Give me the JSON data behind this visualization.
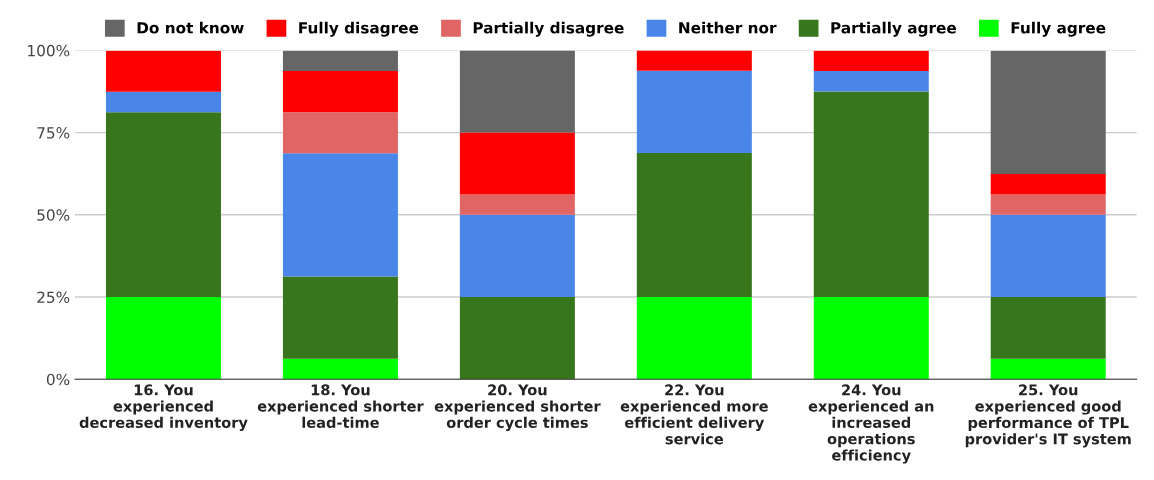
{
  "chart_data": {
    "type": "bar",
    "stacked": true,
    "categories": [
      "16. You\nexperienced\ndecreased inventory",
      "18. You\nexperienced shorter\nlead-time",
      "20. You\nexperienced shorter\norder cycle times",
      "22. You\nexperienced more\nefficient delivery\nservice",
      "24. You\nexperienced an\nincreased\noperations\nefficiency",
      "25. You\nexperienced good\nperformance of TPL\nprovider's IT system"
    ],
    "series": [
      {
        "name": "Fully agree",
        "color": "#00ff00",
        "values": [
          25,
          6.2,
          0,
          25,
          25,
          6.2
        ]
      },
      {
        "name": "Partially agree",
        "color": "#38761d",
        "values": [
          56.2,
          25,
          25,
          43.8,
          62.5,
          18.8
        ]
      },
      {
        "name": "Neither nor",
        "color": "#4a86e8",
        "values": [
          6.2,
          37.5,
          25,
          25,
          6.2,
          25
        ]
      },
      {
        "name": "Partially disagree",
        "color": "#e06666",
        "values": [
          0,
          12.5,
          6.2,
          0,
          0,
          6.2
        ]
      },
      {
        "name": "Fully disagree",
        "color": "#ff0000",
        "values": [
          12.5,
          12.5,
          18.8,
          6.2,
          6.2,
          6.2
        ]
      },
      {
        "name": "Do not know",
        "color": "#666666",
        "values": [
          0,
          6.2,
          25,
          0,
          0,
          37.5
        ]
      }
    ],
    "ylim": [
      0,
      100
    ],
    "yticks": [
      {
        "value": 0,
        "label": "0%"
      },
      {
        "value": 25,
        "label": "25%"
      },
      {
        "value": 50,
        "label": "50%"
      },
      {
        "value": 75,
        "label": "75%"
      },
      {
        "value": 100,
        "label": "100%"
      }
    ],
    "grid": "y",
    "legend": "top"
  }
}
